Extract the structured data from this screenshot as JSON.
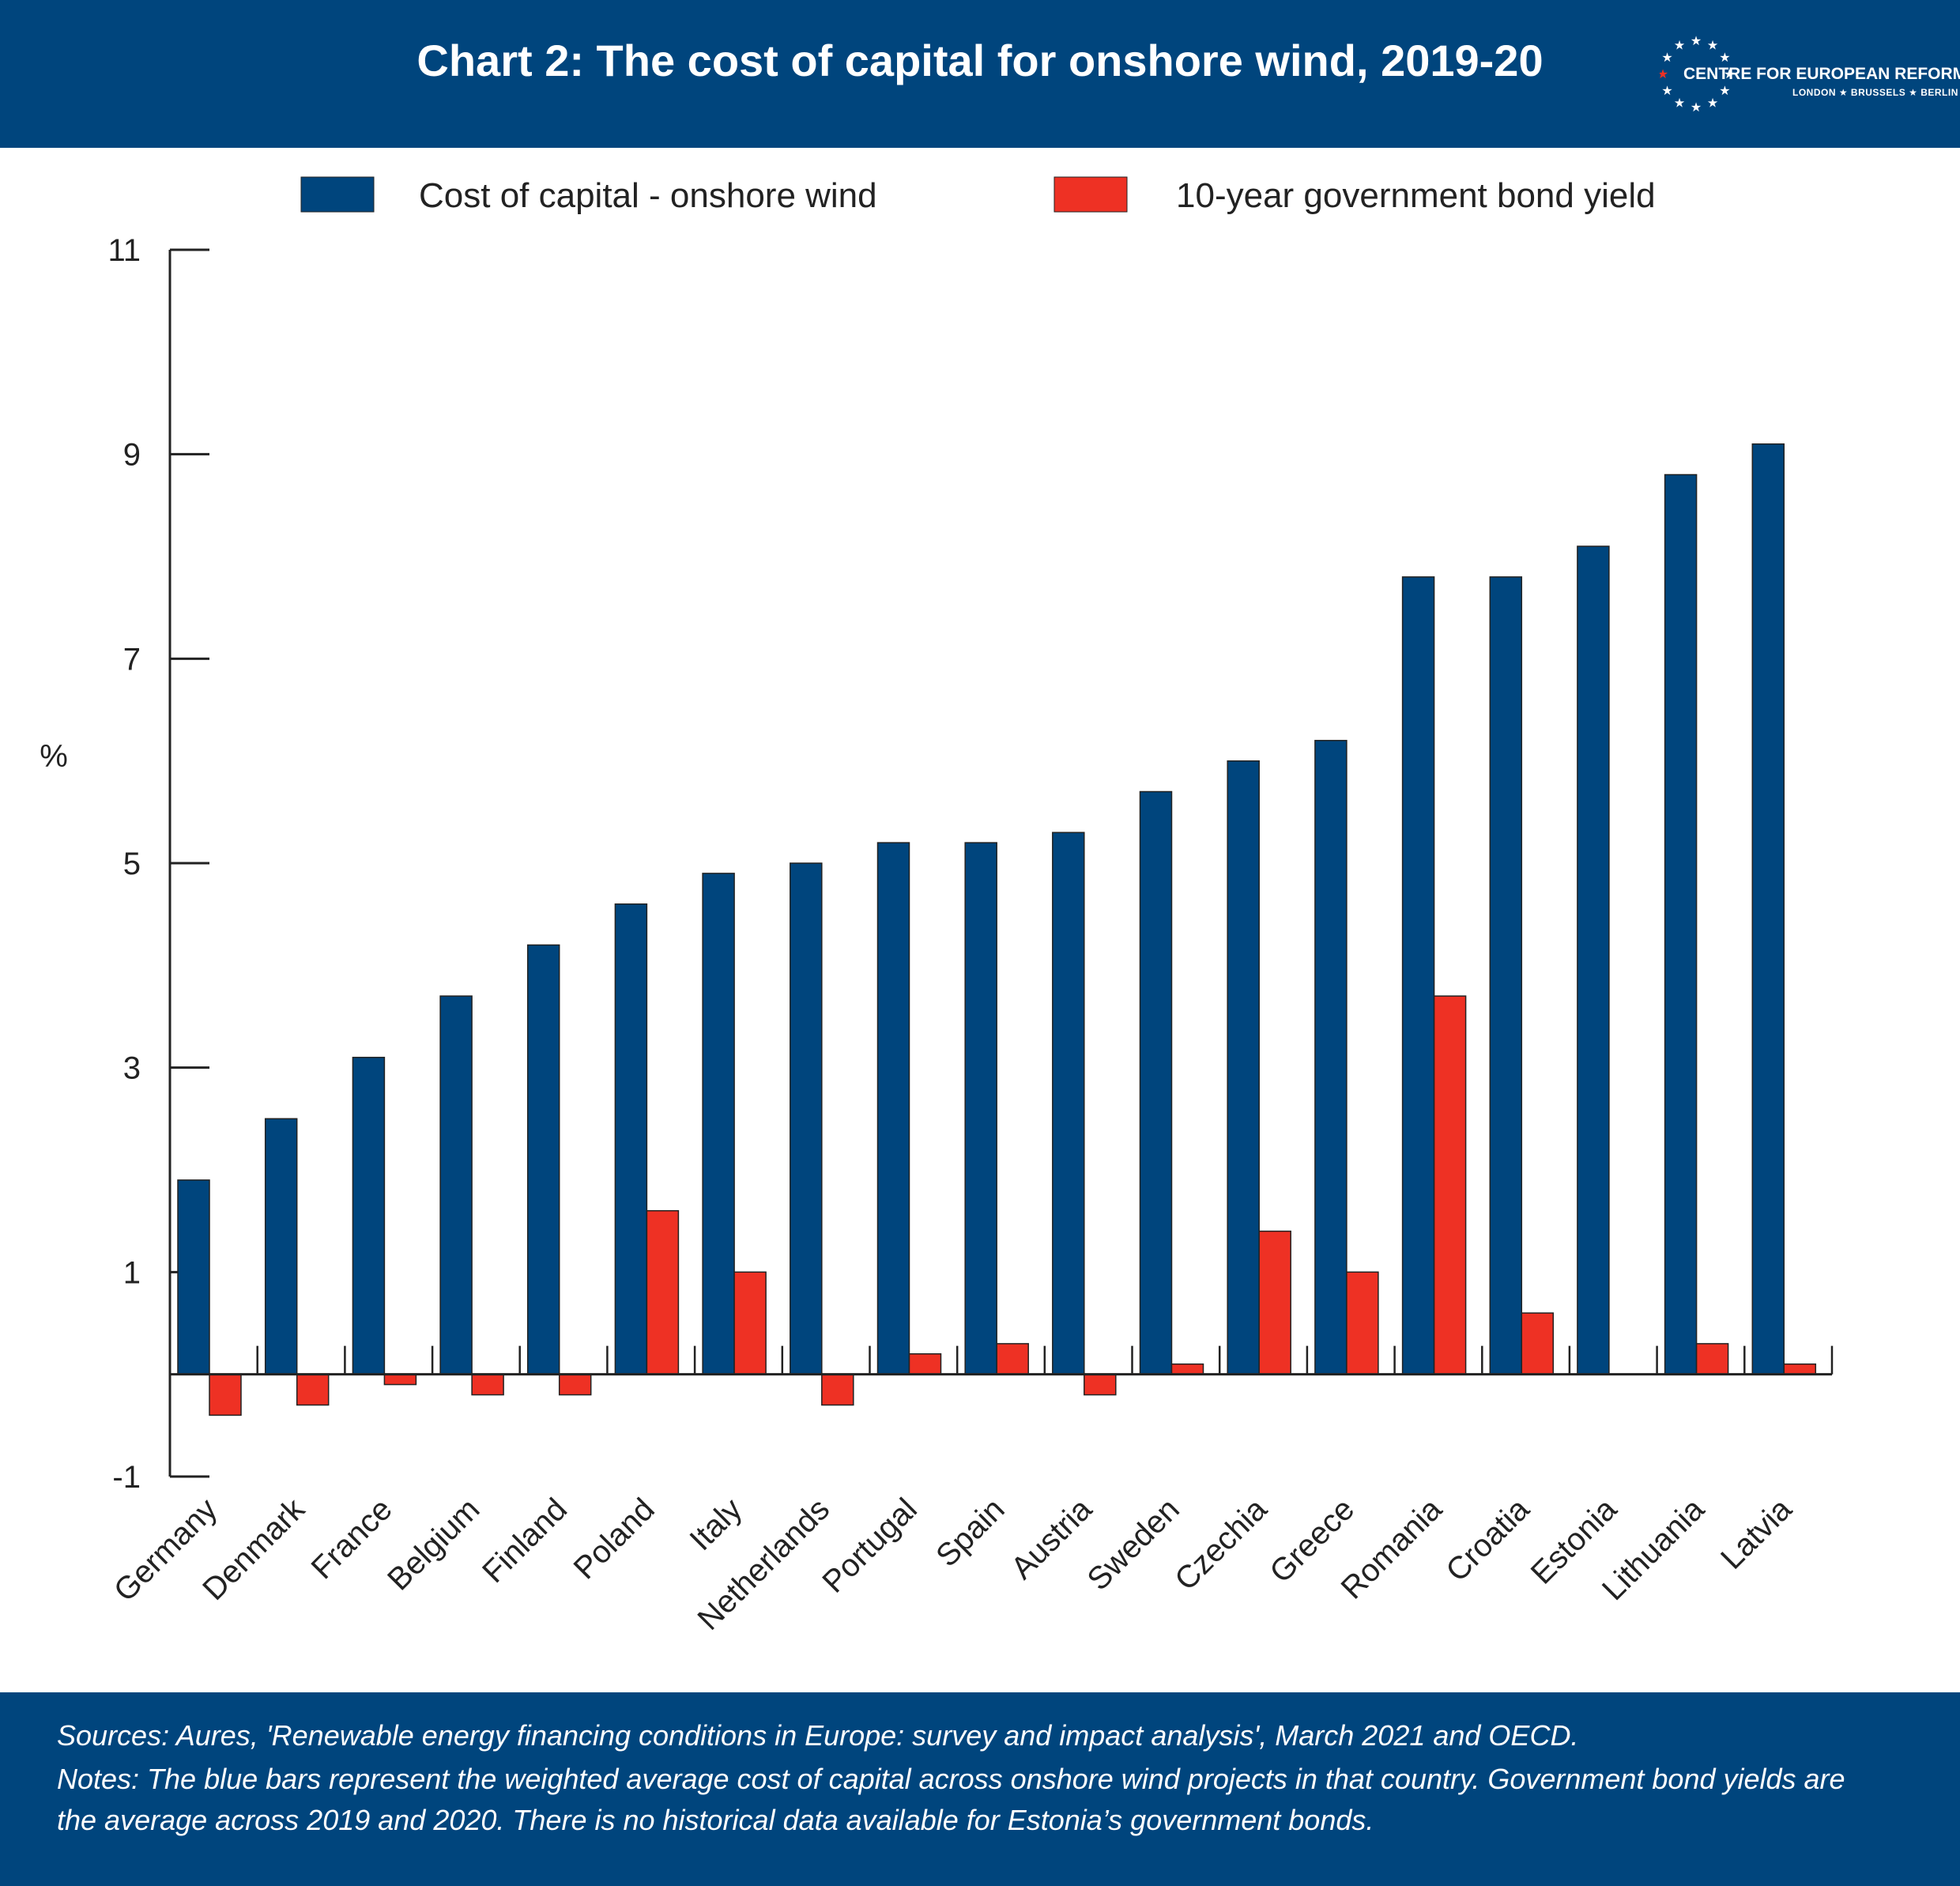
{
  "header": {
    "title": "Chart 2: The cost of capital for onshore wind, 2019-20",
    "logo": {
      "name": "CENTRE FOR EUROPEAN REFORM",
      "cities": "LONDON ★ BRUSSELS ★ BERLIN"
    }
  },
  "footer": {
    "sources": "Sources: Aures, 'Renewable energy financing conditions in Europe: survey and impact analysis', March 2021 and OECD.",
    "notes_line1": "Notes: The blue bars represent the weighted average cost of capital across onshore wind projects in that country. Government bond yields are",
    "notes_line2": "the average across 2019 and 2020. There is no historical data available for Estonia’s government bonds."
  },
  "colors": {
    "header_bg": "#00457d",
    "series_blue": "#00457d",
    "series_red": "#ee3124"
  },
  "chart_data": {
    "type": "bar",
    "title": "Chart 2: The cost of capital for onshore wind, 2019-20",
    "ylabel": "%",
    "xlabel": "",
    "ylim": [
      -1,
      11
    ],
    "yticks": [
      -1,
      1,
      3,
      5,
      7,
      9,
      11
    ],
    "grid": false,
    "legend": "top",
    "categories": [
      "Germany",
      "Denmark",
      "France",
      "Belgium",
      "Finland",
      "Poland",
      "Italy",
      "Netherlands",
      "Portugal",
      "Spain",
      "Austria",
      "Sweden",
      "Czechia",
      "Greece",
      "Romania",
      "Croatia",
      "Estonia",
      "Lithuania",
      "Latvia"
    ],
    "series": [
      {
        "name": "Cost of capital - onshore wind",
        "color": "#00457d",
        "values": [
          1.9,
          2.5,
          3.1,
          3.7,
          4.2,
          4.6,
          4.9,
          5.0,
          5.2,
          5.2,
          5.3,
          5.7,
          6.0,
          6.2,
          7.8,
          7.8,
          8.1,
          8.8,
          9.1
        ]
      },
      {
        "name": "10-year government bond yield",
        "color": "#ee3124",
        "values": [
          -0.4,
          -0.3,
          -0.1,
          -0.2,
          -0.2,
          1.6,
          1.0,
          -0.3,
          0.2,
          0.3,
          -0.2,
          0.1,
          1.4,
          1.0,
          3.7,
          0.6,
          null,
          0.3,
          0.1
        ]
      }
    ]
  }
}
